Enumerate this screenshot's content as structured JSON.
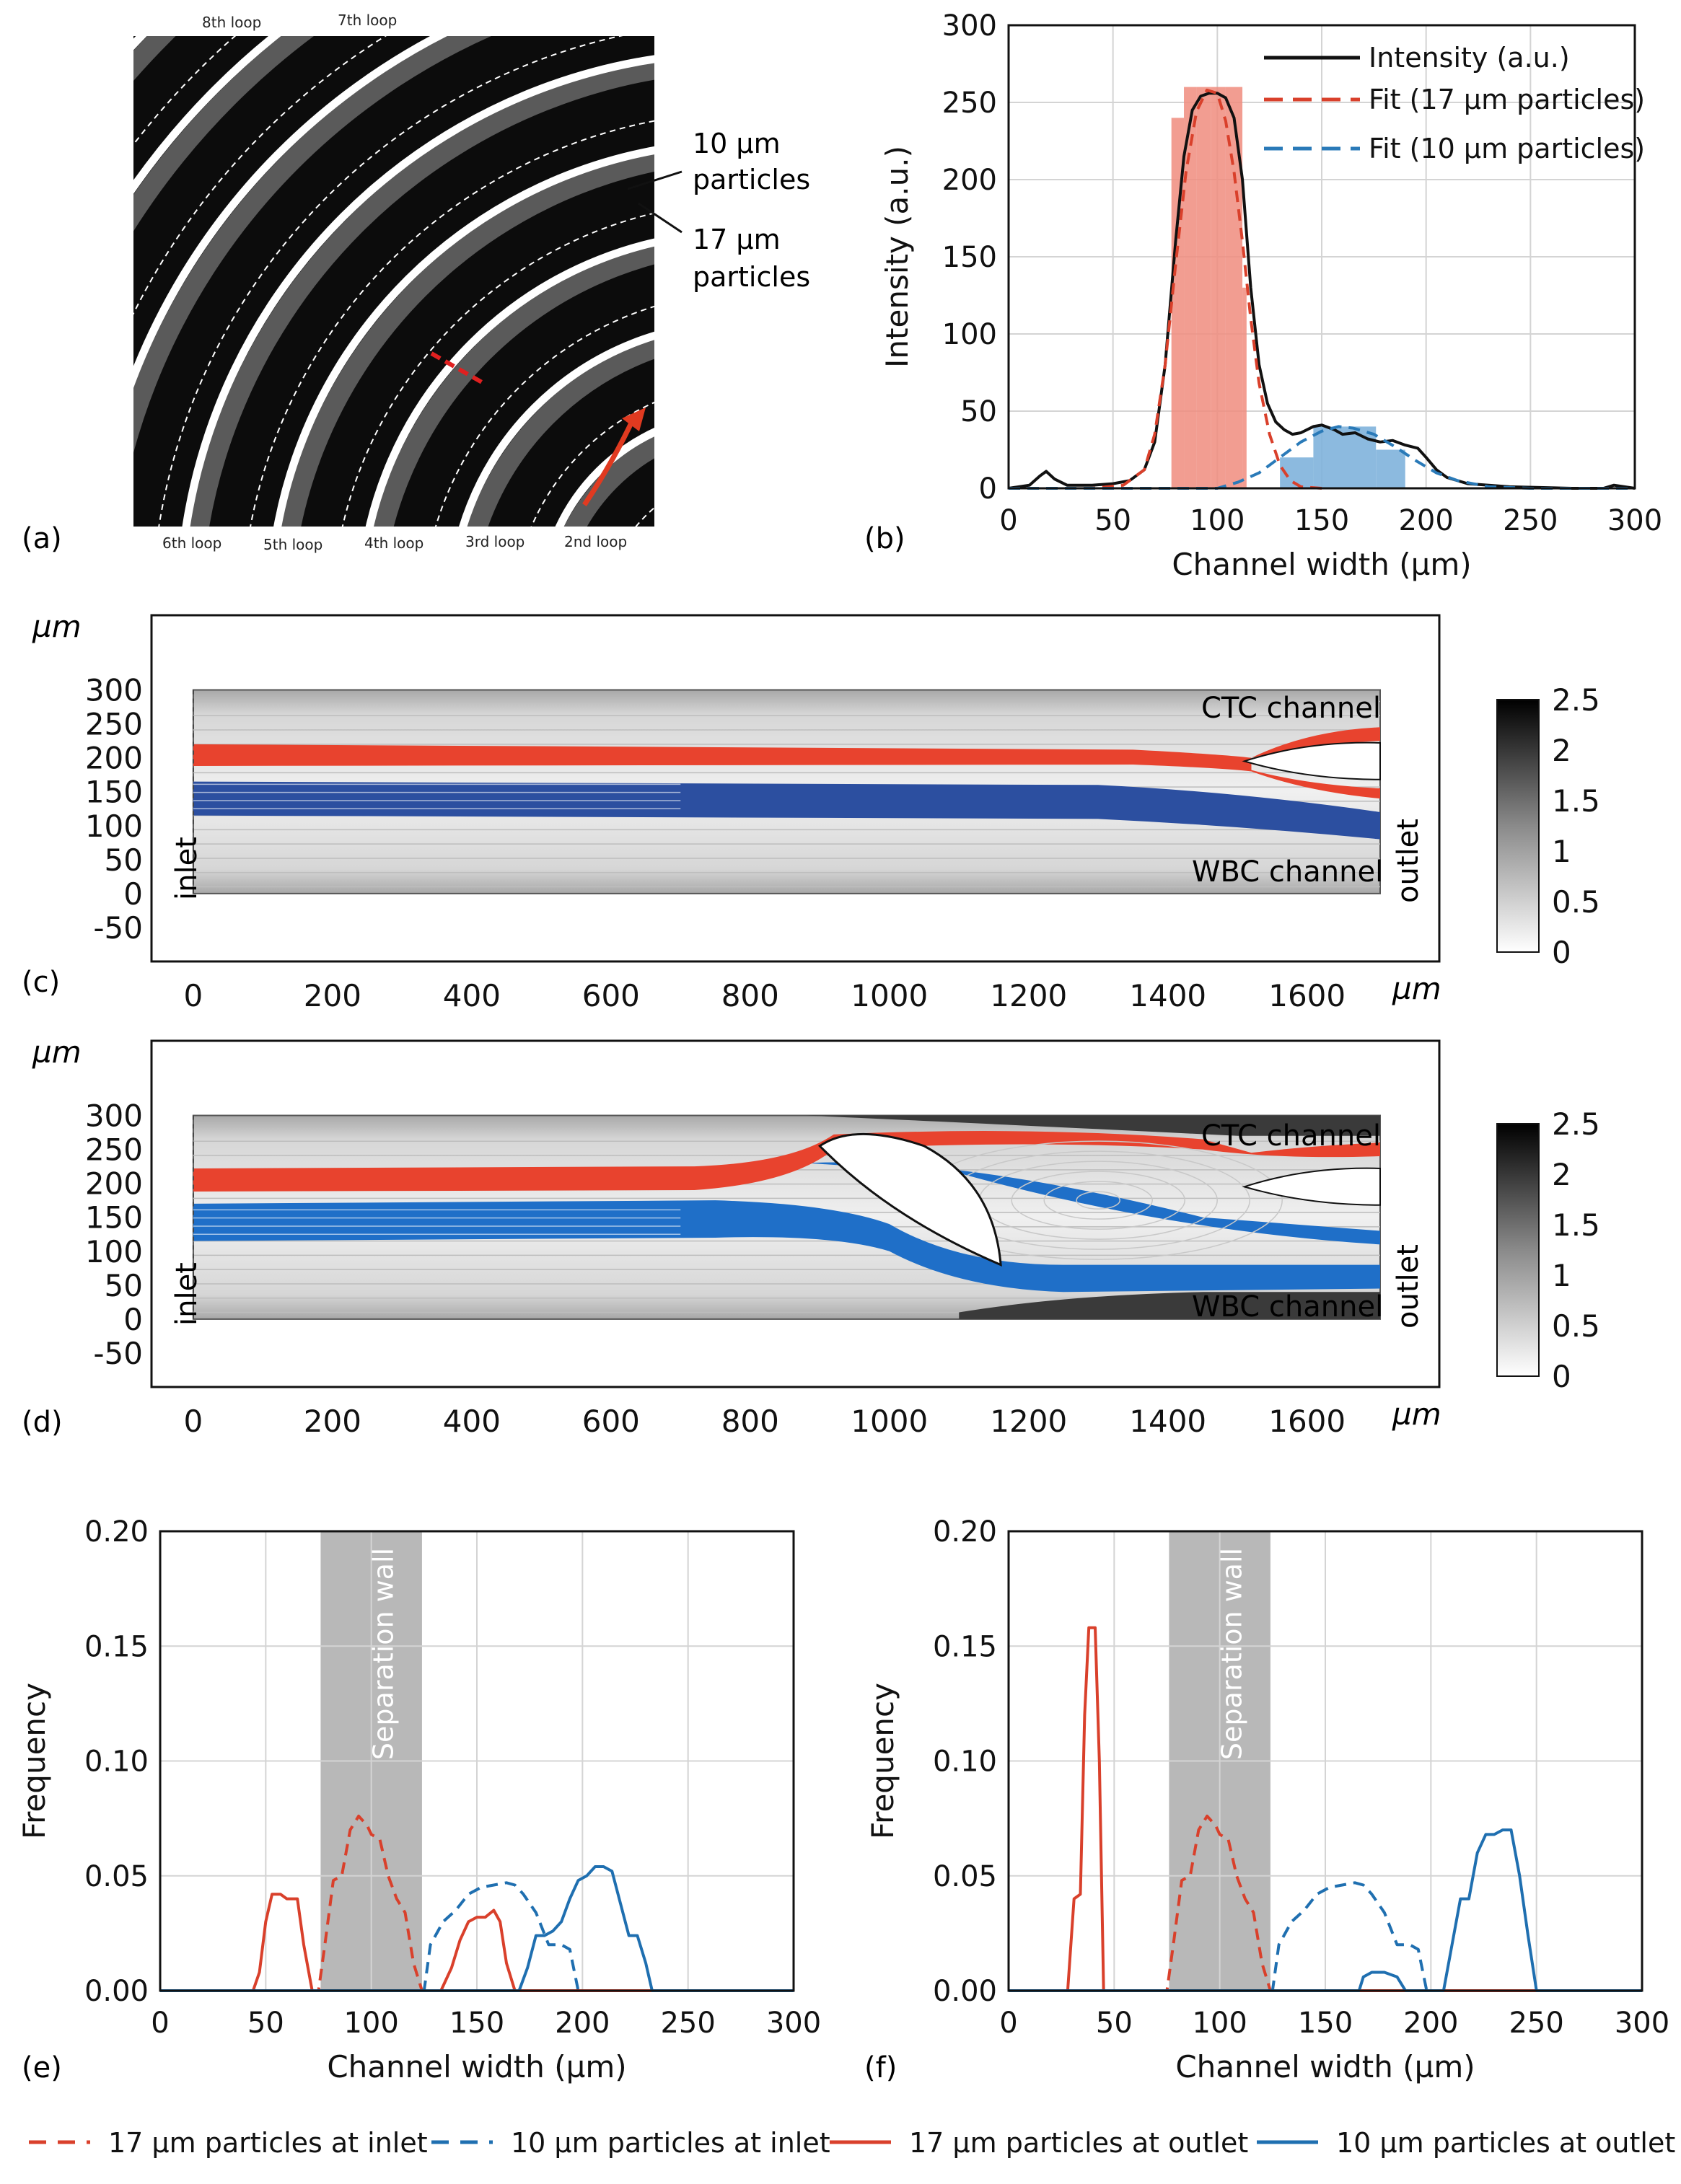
{
  "panels": {
    "a": {
      "label": "(a)",
      "loops_top": [
        "8th loop",
        "7th loop"
      ],
      "loops_bottom": [
        "6th loop",
        "5th loop",
        "4th loop",
        "3rd loop",
        "2nd loop"
      ],
      "annotation_10": [
        "10 µm",
        "particles"
      ],
      "annotation_17": [
        "17 µm",
        "particles"
      ]
    },
    "b": {
      "label": "(b)"
    },
    "c": {
      "label": "(c)",
      "unit_top": "µm",
      "unit_right": "µm",
      "ctc": "CTC channel",
      "wbc": "WBC channel",
      "inlet": "inlet",
      "outlet": "outlet"
    },
    "d": {
      "label": "(d)",
      "unit_top": "µm",
      "unit_right": "µm",
      "ctc": "CTC channel",
      "wbc": "WBC channel",
      "inlet": "inlet",
      "outlet": "outlet"
    },
    "e": {
      "label": "(e)",
      "wall": "Separation wall"
    },
    "f": {
      "label": "(f)",
      "wall": "Separation wall"
    }
  },
  "legend_bottom": [
    {
      "label": "17 µm particles at inlet",
      "color": "#d9402b",
      "dash": true
    },
    {
      "label": "10 µm particles at inlet",
      "color": "#1f6fb0",
      "dash": true
    },
    {
      "label": "17 µm particles at outlet",
      "color": "#d9402b",
      "dash": false
    },
    {
      "label": "10 µm particles at outlet",
      "color": "#1f6fb0",
      "dash": false
    }
  ],
  "colorbar": {
    "ticks": [
      "2.5",
      "2",
      "1.5",
      "1",
      "0.5",
      "0"
    ]
  },
  "chart_data": [
    {
      "id": "b",
      "type": "line",
      "xlabel": "Channel width (µm)",
      "ylabel": "Intensity (a.u.)",
      "xlim": [
        0,
        300
      ],
      "ylim": [
        0,
        300
      ],
      "xticks": [
        0,
        50,
        100,
        150,
        200,
        250,
        300
      ],
      "yticks": [
        0,
        50,
        100,
        150,
        200,
        250,
        300
      ],
      "legend": [
        "Intensity (a.u.)",
        "Fit (17 µm particles)",
        "Fit (10 µm particles)"
      ],
      "bars_17": [
        {
          "x0": 78,
          "x1": 84,
          "y": 240
        },
        {
          "x0": 84,
          "x1": 90,
          "y": 260
        },
        {
          "x0": 90,
          "x1": 97,
          "y": 260
        },
        {
          "x0": 97,
          "x1": 104,
          "y": 260
        },
        {
          "x0": 104,
          "x1": 112,
          "y": 260
        },
        {
          "x0": 112,
          "x1": 114,
          "y": 130
        }
      ],
      "bars_10": [
        {
          "x0": 130,
          "x1": 146,
          "y": 20
        },
        {
          "x0": 146,
          "x1": 176,
          "y": 40
        },
        {
          "x0": 176,
          "x1": 190,
          "y": 25
        }
      ],
      "intensity": [
        [
          0,
          0
        ],
        [
          10,
          2
        ],
        [
          15,
          8
        ],
        [
          18,
          11
        ],
        [
          22,
          6
        ],
        [
          28,
          2
        ],
        [
          40,
          2
        ],
        [
          50,
          3
        ],
        [
          58,
          5
        ],
        [
          65,
          12
        ],
        [
          70,
          30
        ],
        [
          75,
          80
        ],
        [
          80,
          160
        ],
        [
          84,
          215
        ],
        [
          88,
          245
        ],
        [
          92,
          254
        ],
        [
          96,
          256
        ],
        [
          100,
          256
        ],
        [
          104,
          253
        ],
        [
          108,
          240
        ],
        [
          112,
          200
        ],
        [
          116,
          130
        ],
        [
          120,
          80
        ],
        [
          124,
          55
        ],
        [
          128,
          43
        ],
        [
          132,
          38
        ],
        [
          136,
          35
        ],
        [
          140,
          36
        ],
        [
          146,
          40
        ],
        [
          150,
          41
        ],
        [
          156,
          38
        ],
        [
          160,
          35
        ],
        [
          166,
          36
        ],
        [
          172,
          32
        ],
        [
          178,
          30
        ],
        [
          184,
          31
        ],
        [
          190,
          28
        ],
        [
          196,
          26
        ],
        [
          200,
          20
        ],
        [
          205,
          12
        ],
        [
          210,
          7
        ],
        [
          220,
          3
        ],
        [
          240,
          1
        ],
        [
          270,
          0
        ],
        [
          285,
          0
        ],
        [
          290,
          2
        ],
        [
          295,
          1
        ],
        [
          300,
          0
        ]
      ],
      "fit17": [
        [
          0,
          0
        ],
        [
          40,
          0
        ],
        [
          55,
          2
        ],
        [
          65,
          12
        ],
        [
          70,
          35
        ],
        [
          75,
          80
        ],
        [
          80,
          145
        ],
        [
          85,
          205
        ],
        [
          90,
          244
        ],
        [
          95,
          258
        ],
        [
          100,
          256
        ],
        [
          104,
          238
        ],
        [
          108,
          205
        ],
        [
          112,
          160
        ],
        [
          116,
          110
        ],
        [
          120,
          68
        ],
        [
          125,
          35
        ],
        [
          130,
          15
        ],
        [
          135,
          5
        ],
        [
          140,
          1
        ],
        [
          150,
          0
        ]
      ],
      "fit10": [
        [
          0,
          0
        ],
        [
          100,
          0
        ],
        [
          110,
          4
        ],
        [
          120,
          10
        ],
        [
          130,
          20
        ],
        [
          140,
          30
        ],
        [
          150,
          37
        ],
        [
          158,
          40
        ],
        [
          165,
          39
        ],
        [
          175,
          35
        ],
        [
          185,
          27
        ],
        [
          195,
          18
        ],
        [
          205,
          10
        ],
        [
          215,
          5
        ],
        [
          230,
          1
        ],
        [
          250,
          0
        ],
        [
          300,
          0
        ]
      ]
    },
    {
      "id": "c",
      "type": "heatmap",
      "xlim": [
        -60,
        1790
      ],
      "ylim": [
        -100,
        410
      ],
      "xticks": [
        0,
        200,
        400,
        600,
        800,
        1000,
        1200,
        1400,
        1600
      ],
      "yticks": [
        300,
        250,
        200,
        150,
        100,
        50,
        0,
        -50
      ]
    },
    {
      "id": "d",
      "type": "heatmap",
      "xlim": [
        -60,
        1790
      ],
      "ylim": [
        -100,
        410
      ],
      "xticks": [
        0,
        200,
        400,
        600,
        800,
        1000,
        1200,
        1400,
        1600
      ],
      "yticks": [
        300,
        250,
        200,
        150,
        100,
        50,
        0,
        -50
      ]
    },
    {
      "id": "e",
      "type": "line",
      "xlabel": "Channel width (µm)",
      "ylabel": "Frequency",
      "xlim": [
        0,
        300
      ],
      "ylim": [
        0,
        0.2
      ],
      "xticks": [
        0,
        50,
        100,
        150,
        200,
        250,
        300
      ],
      "yticks": [
        0.0,
        0.05,
        0.1,
        0.15,
        0.2
      ],
      "wall_range": [
        76,
        124
      ],
      "series": [
        {
          "name": "17 µm particles at inlet",
          "color": "#d9402b",
          "dash": true,
          "points": [
            [
              0,
              0
            ],
            [
              75,
              0
            ],
            [
              78,
              0.02
            ],
            [
              82,
              0.048
            ],
            [
              86,
              0.05
            ],
            [
              90,
              0.07
            ],
            [
              94,
              0.076
            ],
            [
              98,
              0.072
            ],
            [
              100,
              0.068
            ],
            [
              104,
              0.066
            ],
            [
              108,
              0.05
            ],
            [
              112,
              0.04
            ],
            [
              116,
              0.034
            ],
            [
              120,
              0.012
            ],
            [
              124,
              0
            ],
            [
              300,
              0
            ]
          ]
        },
        {
          "name": "10 µm particles at inlet",
          "color": "#1f6fb0",
          "dash": true,
          "points": [
            [
              0,
              0
            ],
            [
              125,
              0
            ],
            [
              128,
              0.02
            ],
            [
              134,
              0.03
            ],
            [
              140,
              0.035
            ],
            [
              146,
              0.042
            ],
            [
              152,
              0.045
            ],
            [
              158,
              0.046
            ],
            [
              164,
              0.047
            ],
            [
              168,
              0.046
            ],
            [
              172,
              0.042
            ],
            [
              178,
              0.034
            ],
            [
              184,
              0.02
            ],
            [
              190,
              0.02
            ],
            [
              194,
              0.018
            ],
            [
              198,
              0
            ],
            [
              300,
              0
            ]
          ]
        },
        {
          "name": "17 µm particles at outlet",
          "color": "#d9402b",
          "dash": false,
          "points": [
            [
              0,
              0
            ],
            [
              44,
              0
            ],
            [
              47,
              0.008
            ],
            [
              50,
              0.03
            ],
            [
              53,
              0.042
            ],
            [
              57,
              0.042
            ],
            [
              60,
              0.04
            ],
            [
              65,
              0.04
            ],
            [
              68,
              0.02
            ],
            [
              72,
              0
            ],
            [
              133,
              0
            ],
            [
              138,
              0.01
            ],
            [
              142,
              0.022
            ],
            [
              146,
              0.03
            ],
            [
              150,
              0.032
            ],
            [
              154,
              0.032
            ],
            [
              158,
              0.035
            ],
            [
              161,
              0.03
            ],
            [
              164,
              0.012
            ],
            [
              168,
              0
            ],
            [
              300,
              0
            ]
          ]
        },
        {
          "name": "10 µm particles at outlet",
          "color": "#1f6fb0",
          "dash": false,
          "points": [
            [
              0,
              0
            ],
            [
              170,
              0
            ],
            [
              174,
              0.01
            ],
            [
              178,
              0.024
            ],
            [
              182,
              0.024
            ],
            [
              186,
              0.026
            ],
            [
              190,
              0.03
            ],
            [
              194,
              0.04
            ],
            [
              198,
              0.048
            ],
            [
              202,
              0.05
            ],
            [
              206,
              0.054
            ],
            [
              210,
              0.054
            ],
            [
              214,
              0.052
            ],
            [
              218,
              0.038
            ],
            [
              222,
              0.024
            ],
            [
              226,
              0.024
            ],
            [
              230,
              0.012
            ],
            [
              233,
              0
            ],
            [
              300,
              0
            ]
          ]
        }
      ]
    },
    {
      "id": "f",
      "type": "line",
      "xlabel": "Channel width (µm)",
      "ylabel": "Frequency",
      "xlim": [
        0,
        300
      ],
      "ylim": [
        0,
        0.2
      ],
      "xticks": [
        0,
        50,
        100,
        150,
        200,
        250,
        300
      ],
      "yticks": [
        0.0,
        0.05,
        0.1,
        0.15,
        0.2
      ],
      "wall_range": [
        76,
        124
      ],
      "series": [
        {
          "name": "17 µm particles at inlet",
          "color": "#d9402b",
          "dash": true,
          "points": [
            [
              0,
              0
            ],
            [
              75,
              0
            ],
            [
              78,
              0.02
            ],
            [
              82,
              0.048
            ],
            [
              86,
              0.05
            ],
            [
              90,
              0.07
            ],
            [
              94,
              0.076
            ],
            [
              98,
              0.072
            ],
            [
              100,
              0.068
            ],
            [
              104,
              0.066
            ],
            [
              108,
              0.05
            ],
            [
              112,
              0.04
            ],
            [
              116,
              0.034
            ],
            [
              120,
              0.012
            ],
            [
              124,
              0
            ],
            [
              300,
              0
            ]
          ]
        },
        {
          "name": "10 µm particles at inlet",
          "color": "#1f6fb0",
          "dash": true,
          "points": [
            [
              0,
              0
            ],
            [
              125,
              0
            ],
            [
              128,
              0.02
            ],
            [
              134,
              0.03
            ],
            [
              140,
              0.035
            ],
            [
              146,
              0.042
            ],
            [
              152,
              0.045
            ],
            [
              158,
              0.046
            ],
            [
              164,
              0.047
            ],
            [
              168,
              0.046
            ],
            [
              172,
              0.042
            ],
            [
              178,
              0.034
            ],
            [
              184,
              0.02
            ],
            [
              190,
              0.02
            ],
            [
              194,
              0.018
            ],
            [
              198,
              0
            ],
            [
              300,
              0
            ]
          ]
        },
        {
          "name": "17 µm particles at outlet",
          "color": "#d9402b",
          "dash": false,
          "points": [
            [
              0,
              0
            ],
            [
              28,
              0
            ],
            [
              31,
              0.04
            ],
            [
              34,
              0.042
            ],
            [
              36,
              0.12
            ],
            [
              38,
              0.158
            ],
            [
              41,
              0.158
            ],
            [
              43,
              0.1
            ],
            [
              45,
              0
            ],
            [
              300,
              0
            ]
          ]
        },
        {
          "name": "10 µm particles at outlet",
          "color": "#1f6fb0",
          "dash": false,
          "points": [
            [
              0,
              0
            ],
            [
              166,
              0
            ],
            [
              168,
              0.006
            ],
            [
              172,
              0.008
            ],
            [
              178,
              0.008
            ],
            [
              184,
              0.006
            ],
            [
              188,
              0
            ],
            [
              206,
              0
            ],
            [
              210,
              0.02
            ],
            [
              214,
              0.04
            ],
            [
              218,
              0.04
            ],
            [
              222,
              0.06
            ],
            [
              226,
              0.068
            ],
            [
              230,
              0.068
            ],
            [
              234,
              0.07
            ],
            [
              238,
              0.07
            ],
            [
              242,
              0.05
            ],
            [
              246,
              0.024
            ],
            [
              250,
              0
            ],
            [
              300,
              0
            ]
          ]
        }
      ]
    }
  ]
}
